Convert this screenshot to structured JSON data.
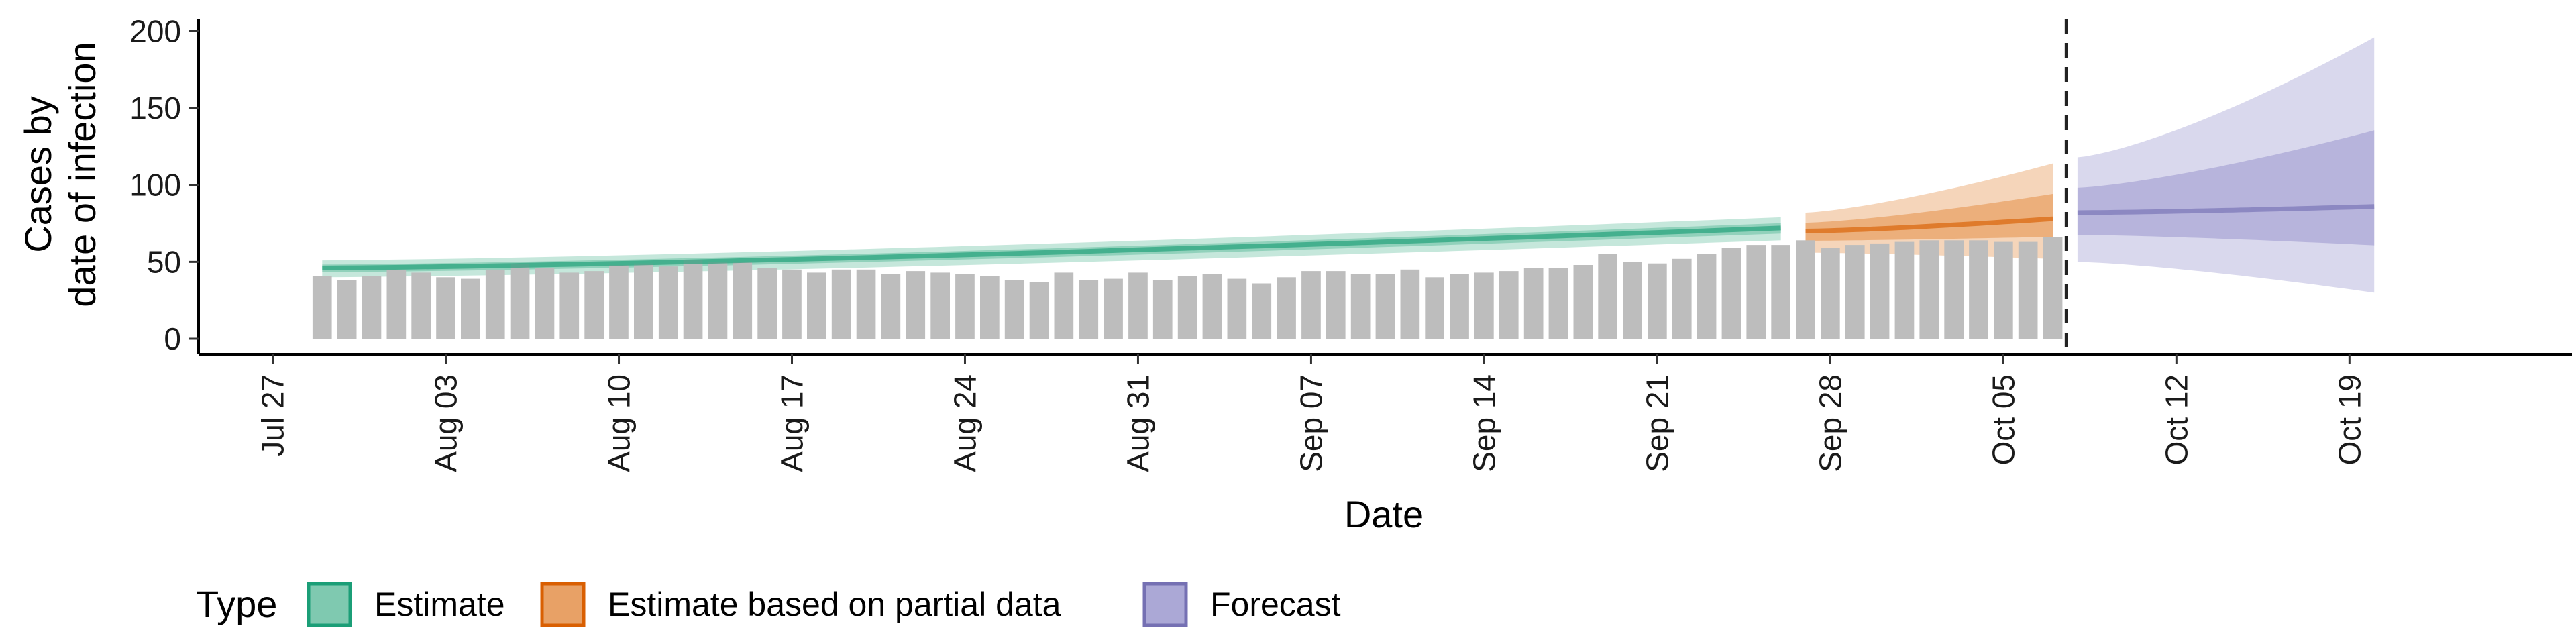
{
  "chart_data": {
    "type": "bar",
    "title": "",
    "xlabel": "Date",
    "ylabel_lines": [
      "Cases by",
      "date of infection"
    ],
    "ylim": [
      0,
      205
    ],
    "y_ticks": [
      0,
      50,
      100,
      150,
      200
    ],
    "x_domain": [
      "2020-07-24",
      "2020-10-28"
    ],
    "x_ticks": [
      {
        "date": "2020-07-27",
        "label": "Jul 27"
      },
      {
        "date": "2020-08-03",
        "label": "Aug 03"
      },
      {
        "date": "2020-08-10",
        "label": "Aug 10"
      },
      {
        "date": "2020-08-17",
        "label": "Aug 17"
      },
      {
        "date": "2020-08-24",
        "label": "Aug 24"
      },
      {
        "date": "2020-08-31",
        "label": "Aug 31"
      },
      {
        "date": "2020-09-07",
        "label": "Sep 07"
      },
      {
        "date": "2020-09-14",
        "label": "Sep 14"
      },
      {
        "date": "2020-09-21",
        "label": "Sep 21"
      },
      {
        "date": "2020-09-28",
        "label": "Sep 28"
      },
      {
        "date": "2020-10-05",
        "label": "Oct 05"
      },
      {
        "date": "2020-10-12",
        "label": "Oct 12"
      },
      {
        "date": "2020-10-19",
        "label": "Oct 19"
      }
    ],
    "bars_start_date": "2020-07-29",
    "bars_end_date": "2020-10-07",
    "bar_color": "#bdbdbd",
    "bar_values": [
      41,
      38,
      41,
      45,
      43,
      40,
      39,
      45,
      49,
      46,
      43,
      44,
      48,
      49,
      47,
      51,
      50,
      50,
      46,
      45,
      43,
      45,
      45,
      42,
      44,
      43,
      42,
      41,
      38,
      37,
      43,
      38,
      39,
      43,
      38,
      41,
      42,
      39,
      36,
      40,
      44,
      44,
      42,
      42,
      45,
      40,
      42,
      43,
      44,
      46,
      46,
      48,
      55,
      50,
      49,
      52,
      55,
      59,
      61,
      61,
      64,
      59,
      61,
      62,
      63,
      64,
      64,
      64,
      63,
      63,
      66
    ],
    "forecast_date": "2020-10-07",
    "forecast_line_style": "dashed",
    "series": [
      {
        "name": "Estimate",
        "color": "#1b9e77",
        "fill": "#7fc9b0",
        "start_date": "2020-07-29",
        "end_date": "2020-09-26",
        "median": [
          46,
          72
        ],
        "lower_90": [
          40,
          64
        ],
        "upper_90": [
          51,
          79
        ]
      },
      {
        "name": "Estimate based on partial data",
        "color": "#d95f02",
        "fill": "#e8a166",
        "start_date": "2020-09-27",
        "end_date": "2020-10-07",
        "median": [
          70,
          78
        ],
        "lower_90": [
          56,
          52
        ],
        "upper_90": [
          82,
          114
        ]
      },
      {
        "name": "Forecast",
        "color": "#7570b3",
        "fill": "#aba8d6",
        "start_date": "2020-10-08",
        "end_date": "2020-10-20",
        "median": [
          82,
          86
        ],
        "lower_90": [
          50,
          30
        ],
        "upper_90": [
          118,
          196
        ]
      }
    ],
    "legend_title": "Type",
    "legend_position": "bottom-left",
    "grid": false
  }
}
